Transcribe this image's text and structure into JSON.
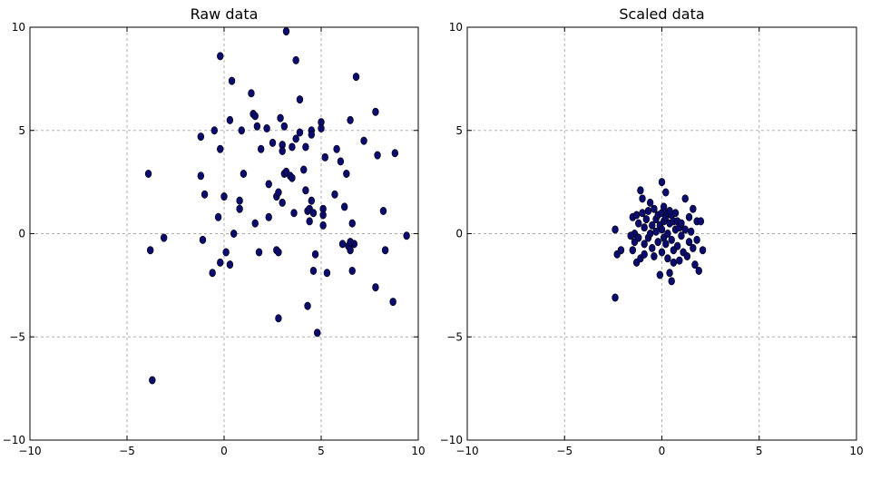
{
  "chart_data": [
    {
      "type": "scatter",
      "title": "Raw data",
      "xlim": [
        -10,
        10
      ],
      "ylim": [
        -10,
        10
      ],
      "xticks": [
        -10,
        -5,
        0,
        5,
        10
      ],
      "yticks": [
        -10,
        -5,
        0,
        5,
        10
      ],
      "xtick_labels": [
        "−10",
        "−5",
        "0",
        "5",
        "10"
      ],
      "ytick_labels": [
        "−10",
        "−5",
        "0",
        "5",
        "10"
      ],
      "grid": true,
      "marker_color": "#0b0b6e",
      "points": [
        [
          -3.9,
          2.9
        ],
        [
          -3.8,
          -0.8
        ],
        [
          -3.7,
          -7.1
        ],
        [
          -3.1,
          -0.2
        ],
        [
          -1.2,
          4.7
        ],
        [
          -1.2,
          2.8
        ],
        [
          -1.1,
          -0.3
        ],
        [
          -1.0,
          1.9
        ],
        [
          -0.6,
          -1.9
        ],
        [
          -0.5,
          5.0
        ],
        [
          -0.3,
          0.8
        ],
        [
          -0.2,
          -1.4
        ],
        [
          -0.2,
          4.1
        ],
        [
          -0.2,
          8.6
        ],
        [
          0.0,
          1.8
        ],
        [
          0.1,
          -0.9
        ],
        [
          0.3,
          5.5
        ],
        [
          0.3,
          -1.5
        ],
        [
          0.4,
          7.4
        ],
        [
          0.5,
          0.0
        ],
        [
          0.8,
          1.6
        ],
        [
          0.8,
          1.2
        ],
        [
          0.9,
          5.0
        ],
        [
          1.0,
          2.9
        ],
        [
          1.4,
          6.8
        ],
        [
          1.5,
          5.8
        ],
        [
          1.6,
          5.7
        ],
        [
          1.6,
          0.5
        ],
        [
          1.7,
          5.2
        ],
        [
          1.8,
          -0.9
        ],
        [
          1.9,
          4.1
        ],
        [
          2.2,
          5.1
        ],
        [
          2.3,
          2.4
        ],
        [
          2.3,
          0.8
        ],
        [
          2.5,
          4.4
        ],
        [
          2.7,
          1.8
        ],
        [
          2.7,
          -0.8
        ],
        [
          2.8,
          -4.1
        ],
        [
          2.8,
          -0.9
        ],
        [
          2.8,
          2.0
        ],
        [
          2.9,
          5.6
        ],
        [
          3.0,
          1.5
        ],
        [
          3.0,
          4.3
        ],
        [
          3.0,
          4.0
        ],
        [
          3.1,
          5.2
        ],
        [
          3.1,
          2.9
        ],
        [
          3.2,
          9.8
        ],
        [
          3.2,
          3.0
        ],
        [
          3.4,
          2.8
        ],
        [
          3.5,
          2.7
        ],
        [
          3.5,
          4.2
        ],
        [
          3.6,
          1.0
        ],
        [
          3.7,
          8.4
        ],
        [
          3.7,
          4.6
        ],
        [
          3.9,
          6.5
        ],
        [
          3.9,
          4.9
        ],
        [
          4.1,
          3.1
        ],
        [
          4.2,
          2.1
        ],
        [
          4.2,
          4.2
        ],
        [
          4.3,
          1.1
        ],
        [
          4.3,
          -3.5
        ],
        [
          4.4,
          1.2
        ],
        [
          4.4,
          0.6
        ],
        [
          4.5,
          5.0
        ],
        [
          4.5,
          4.8
        ],
        [
          4.5,
          1.6
        ],
        [
          4.6,
          1.0
        ],
        [
          4.6,
          -1.8
        ],
        [
          4.7,
          -1.0
        ],
        [
          4.8,
          -4.8
        ],
        [
          5.0,
          5.4
        ],
        [
          5.0,
          5.1
        ],
        [
          5.1,
          1.2
        ],
        [
          5.1,
          0.9
        ],
        [
          5.1,
          0.4
        ],
        [
          5.2,
          3.7
        ],
        [
          5.3,
          -1.9
        ],
        [
          5.7,
          1.9
        ],
        [
          5.8,
          4.1
        ],
        [
          6.0,
          3.5
        ],
        [
          6.1,
          -0.5
        ],
        [
          6.2,
          1.3
        ],
        [
          6.3,
          2.9
        ],
        [
          6.4,
          -0.6
        ],
        [
          6.5,
          5.5
        ],
        [
          6.5,
          -0.8
        ],
        [
          6.6,
          -1.8
        ],
        [
          6.6,
          0.5
        ],
        [
          6.7,
          -0.5
        ],
        [
          6.8,
          7.6
        ],
        [
          7.2,
          4.5
        ],
        [
          7.8,
          5.9
        ],
        [
          7.8,
          -2.6
        ],
        [
          7.9,
          3.8
        ],
        [
          8.2,
          1.1
        ],
        [
          8.3,
          -0.8
        ],
        [
          8.7,
          -3.3
        ],
        [
          8.8,
          3.9
        ],
        [
          9.4,
          -0.1
        ],
        [
          6.5,
          -0.4
        ]
      ]
    },
    {
      "type": "scatter",
      "title": "Scaled data",
      "xlim": [
        -10,
        10
      ],
      "ylim": [
        -10,
        10
      ],
      "xticks": [
        -10,
        -5,
        0,
        5,
        10
      ],
      "yticks": [
        -10,
        -5,
        0,
        5,
        10
      ],
      "xtick_labels": [
        "−10",
        "−5",
        "0",
        "5",
        "10"
      ],
      "ytick_labels": [
        "−10",
        "−5",
        "0",
        "5",
        "10"
      ],
      "grid": true,
      "marker_color": "#0b0b6e",
      "points": [
        [
          -2.4,
          -3.1
        ],
        [
          -2.4,
          0.2
        ],
        [
          -2.3,
          -1.0
        ],
        [
          -2.1,
          -0.8
        ],
        [
          -1.5,
          0.8
        ],
        [
          -1.5,
          -0.8
        ],
        [
          -1.4,
          0.0
        ],
        [
          -1.4,
          -0.4
        ],
        [
          -1.3,
          -1.4
        ],
        [
          -1.3,
          0.9
        ],
        [
          -1.2,
          -0.2
        ],
        [
          -1.2,
          0.5
        ],
        [
          -1.1,
          2.1
        ],
        [
          -1.1,
          -1.2
        ],
        [
          -1.0,
          1.7
        ],
        [
          -1.0,
          1.0
        ],
        [
          -0.9,
          0.3
        ],
        [
          -0.9,
          -0.5
        ],
        [
          -0.9,
          -1.0
        ],
        [
          -0.8,
          0.7
        ],
        [
          -0.7,
          1.1
        ],
        [
          -0.7,
          -0.2
        ],
        [
          -0.6,
          1.5
        ],
        [
          -0.6,
          0.0
        ],
        [
          -0.5,
          -0.7
        ],
        [
          -0.5,
          0.4
        ],
        [
          -0.4,
          1.2
        ],
        [
          -0.4,
          -1.1
        ],
        [
          -0.3,
          0.7
        ],
        [
          -0.3,
          0.1
        ],
        [
          -0.2,
          0.9
        ],
        [
          -0.2,
          -0.4
        ],
        [
          -0.1,
          0.4
        ],
        [
          -0.1,
          -2.0
        ],
        [
          0.0,
          2.5
        ],
        [
          0.0,
          1.0
        ],
        [
          0.0,
          0.2
        ],
        [
          0.0,
          -0.9
        ],
        [
          0.1,
          1.3
        ],
        [
          0.1,
          0.6
        ],
        [
          0.1,
          -0.2
        ],
        [
          0.2,
          2.0
        ],
        [
          0.2,
          0.8
        ],
        [
          0.2,
          -0.5
        ],
        [
          0.3,
          1.0
        ],
        [
          0.3,
          0.0
        ],
        [
          0.3,
          -1.2
        ],
        [
          0.4,
          0.5
        ],
        [
          0.4,
          -1.9
        ],
        [
          0.5,
          0.9
        ],
        [
          0.5,
          -0.3
        ],
        [
          0.5,
          -2.3
        ],
        [
          0.6,
          0.6
        ],
        [
          0.6,
          -0.8
        ],
        [
          0.6,
          -1.4
        ],
        [
          0.7,
          1.0
        ],
        [
          0.7,
          0.2
        ],
        [
          0.8,
          0.6
        ],
        [
          0.8,
          -0.6
        ],
        [
          0.9,
          0.3
        ],
        [
          0.9,
          -1.3
        ],
        [
          1.0,
          0.5
        ],
        [
          1.0,
          -0.1
        ],
        [
          1.1,
          -0.9
        ],
        [
          1.2,
          1.7
        ],
        [
          1.2,
          0.2
        ],
        [
          1.3,
          -1.1
        ],
        [
          1.4,
          0.8
        ],
        [
          1.4,
          -0.4
        ],
        [
          1.5,
          0.1
        ],
        [
          1.6,
          1.2
        ],
        [
          1.6,
          -0.7
        ],
        [
          1.7,
          -1.5
        ],
        [
          1.8,
          0.6
        ],
        [
          1.8,
          -0.3
        ],
        [
          1.9,
          -1.8
        ],
        [
          2.0,
          0.6
        ],
        [
          2.1,
          -0.8
        ],
        [
          -1.6,
          -0.1
        ],
        [
          0.4,
          1.1
        ]
      ]
    }
  ]
}
